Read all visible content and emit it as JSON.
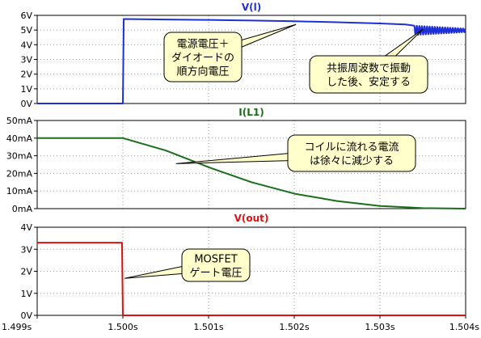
{
  "chart_data": [
    {
      "type": "line",
      "title": "V(l)",
      "title_color": "#1f2fd6",
      "yticks": [
        "6V",
        "5V",
        "4V",
        "3V",
        "2V",
        "1V",
        "0V"
      ],
      "ylim": [
        0,
        6
      ],
      "xlim": [
        1.499,
        1.504
      ],
      "grid": true,
      "series": [
        {
          "color": "#1f2fd6",
          "x": [
            1.499,
            1.49999,
            1.5,
            1.50001,
            1.5005,
            1.501,
            1.5015,
            1.502,
            1.5025,
            1.503,
            1.5033,
            1.5034
          ],
          "y": [
            0,
            0,
            0,
            5.75,
            5.72,
            5.69,
            5.65,
            5.6,
            5.53,
            5.45,
            5.38,
            5.3
          ]
        }
      ],
      "oscillation": {
        "x_start": 1.5034,
        "x_end": 1.504,
        "center": 4.98,
        "start_amplitude": 0.32,
        "end_amplitude": 0.12,
        "cycles": 20
      },
      "annotations": [
        {
          "lines": [
            "電源電圧＋",
            "ダイオードの",
            "順方向電圧"
          ],
          "target": [
            1.50202,
            5.38
          ]
        },
        {
          "lines": [
            "共振周波数で振動",
            "した後、安定する"
          ],
          "target": [
            1.5035,
            5.05
          ]
        }
      ]
    },
    {
      "type": "line",
      "title": "I(L1)",
      "title_color": "#1a6e1a",
      "yticks": [
        "50mA",
        "40mA",
        "30mA",
        "20mA",
        "10mA",
        "0mA"
      ],
      "ylim": [
        0,
        50
      ],
      "xlim": [
        1.499,
        1.504
      ],
      "grid": true,
      "series": [
        {
          "color": "#1a6e1a",
          "x": [
            1.499,
            1.5,
            1.5005,
            1.501,
            1.5015,
            1.502,
            1.5025,
            1.503,
            1.5035,
            1.504
          ],
          "y": [
            40,
            40,
            33,
            23.5,
            15,
            8.5,
            4.3,
            1.5,
            0.3,
            0
          ]
        }
      ],
      "annotations": [
        {
          "lines": [
            "コイルに流れる電流",
            "は徐々に減少する"
          ],
          "target": [
            1.50062,
            25.5
          ]
        }
      ]
    },
    {
      "type": "line",
      "title": "V(out)",
      "title_color": "#e01010",
      "yticks": [
        "4V",
        "3V",
        "2V",
        "1V",
        "0V"
      ],
      "ylim": [
        0,
        4
      ],
      "xlim": [
        1.499,
        1.504
      ],
      "xticks": [
        "1.499s",
        "1.500s",
        "1.501s",
        "1.502s",
        "1.503s",
        "1.504s"
      ],
      "grid": true,
      "series": [
        {
          "color": "#e01010",
          "x": [
            1.499,
            1.49999,
            1.5,
            1.504
          ],
          "y": [
            3.3,
            3.3,
            0,
            0
          ]
        }
      ],
      "annotations": [
        {
          "lines": [
            "MOSFET",
            "ゲート電圧"
          ],
          "target": [
            1.50002,
            1.68
          ]
        }
      ]
    }
  ],
  "colors": {
    "callout_fill": "#ffffcc",
    "callout_stroke": "#000000",
    "grid": "#9a9a9a",
    "frame": "#000000",
    "text": "#000000"
  }
}
